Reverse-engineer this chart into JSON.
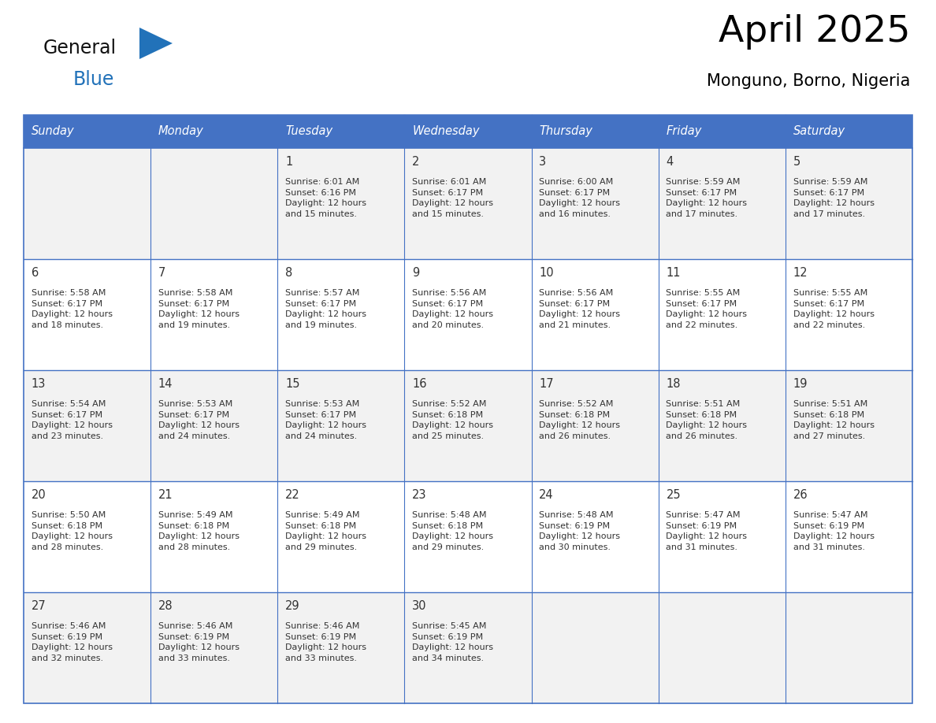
{
  "title": "April 2025",
  "subtitle": "Monguno, Borno, Nigeria",
  "header_bg": "#4472C4",
  "header_text": "#FFFFFF",
  "row_bg_odd": "#F2F2F2",
  "row_bg_even": "#FFFFFF",
  "border_color": "#4472C4",
  "text_color": "#333333",
  "day_headers": [
    "Sunday",
    "Monday",
    "Tuesday",
    "Wednesday",
    "Thursday",
    "Friday",
    "Saturday"
  ],
  "weeks": [
    [
      {
        "day": "",
        "text": ""
      },
      {
        "day": "",
        "text": ""
      },
      {
        "day": "1",
        "text": "Sunrise: 6:01 AM\nSunset: 6:16 PM\nDaylight: 12 hours\nand 15 minutes."
      },
      {
        "day": "2",
        "text": "Sunrise: 6:01 AM\nSunset: 6:17 PM\nDaylight: 12 hours\nand 15 minutes."
      },
      {
        "day": "3",
        "text": "Sunrise: 6:00 AM\nSunset: 6:17 PM\nDaylight: 12 hours\nand 16 minutes."
      },
      {
        "day": "4",
        "text": "Sunrise: 5:59 AM\nSunset: 6:17 PM\nDaylight: 12 hours\nand 17 minutes."
      },
      {
        "day": "5",
        "text": "Sunrise: 5:59 AM\nSunset: 6:17 PM\nDaylight: 12 hours\nand 17 minutes."
      }
    ],
    [
      {
        "day": "6",
        "text": "Sunrise: 5:58 AM\nSunset: 6:17 PM\nDaylight: 12 hours\nand 18 minutes."
      },
      {
        "day": "7",
        "text": "Sunrise: 5:58 AM\nSunset: 6:17 PM\nDaylight: 12 hours\nand 19 minutes."
      },
      {
        "day": "8",
        "text": "Sunrise: 5:57 AM\nSunset: 6:17 PM\nDaylight: 12 hours\nand 19 minutes."
      },
      {
        "day": "9",
        "text": "Sunrise: 5:56 AM\nSunset: 6:17 PM\nDaylight: 12 hours\nand 20 minutes."
      },
      {
        "day": "10",
        "text": "Sunrise: 5:56 AM\nSunset: 6:17 PM\nDaylight: 12 hours\nand 21 minutes."
      },
      {
        "day": "11",
        "text": "Sunrise: 5:55 AM\nSunset: 6:17 PM\nDaylight: 12 hours\nand 22 minutes."
      },
      {
        "day": "12",
        "text": "Sunrise: 5:55 AM\nSunset: 6:17 PM\nDaylight: 12 hours\nand 22 minutes."
      }
    ],
    [
      {
        "day": "13",
        "text": "Sunrise: 5:54 AM\nSunset: 6:17 PM\nDaylight: 12 hours\nand 23 minutes."
      },
      {
        "day": "14",
        "text": "Sunrise: 5:53 AM\nSunset: 6:17 PM\nDaylight: 12 hours\nand 24 minutes."
      },
      {
        "day": "15",
        "text": "Sunrise: 5:53 AM\nSunset: 6:17 PM\nDaylight: 12 hours\nand 24 minutes."
      },
      {
        "day": "16",
        "text": "Sunrise: 5:52 AM\nSunset: 6:18 PM\nDaylight: 12 hours\nand 25 minutes."
      },
      {
        "day": "17",
        "text": "Sunrise: 5:52 AM\nSunset: 6:18 PM\nDaylight: 12 hours\nand 26 minutes."
      },
      {
        "day": "18",
        "text": "Sunrise: 5:51 AM\nSunset: 6:18 PM\nDaylight: 12 hours\nand 26 minutes."
      },
      {
        "day": "19",
        "text": "Sunrise: 5:51 AM\nSunset: 6:18 PM\nDaylight: 12 hours\nand 27 minutes."
      }
    ],
    [
      {
        "day": "20",
        "text": "Sunrise: 5:50 AM\nSunset: 6:18 PM\nDaylight: 12 hours\nand 28 minutes."
      },
      {
        "day": "21",
        "text": "Sunrise: 5:49 AM\nSunset: 6:18 PM\nDaylight: 12 hours\nand 28 minutes."
      },
      {
        "day": "22",
        "text": "Sunrise: 5:49 AM\nSunset: 6:18 PM\nDaylight: 12 hours\nand 29 minutes."
      },
      {
        "day": "23",
        "text": "Sunrise: 5:48 AM\nSunset: 6:18 PM\nDaylight: 12 hours\nand 29 minutes."
      },
      {
        "day": "24",
        "text": "Sunrise: 5:48 AM\nSunset: 6:19 PM\nDaylight: 12 hours\nand 30 minutes."
      },
      {
        "day": "25",
        "text": "Sunrise: 5:47 AM\nSunset: 6:19 PM\nDaylight: 12 hours\nand 31 minutes."
      },
      {
        "day": "26",
        "text": "Sunrise: 5:47 AM\nSunset: 6:19 PM\nDaylight: 12 hours\nand 31 minutes."
      }
    ],
    [
      {
        "day": "27",
        "text": "Sunrise: 5:46 AM\nSunset: 6:19 PM\nDaylight: 12 hours\nand 32 minutes."
      },
      {
        "day": "28",
        "text": "Sunrise: 5:46 AM\nSunset: 6:19 PM\nDaylight: 12 hours\nand 33 minutes."
      },
      {
        "day": "29",
        "text": "Sunrise: 5:46 AM\nSunset: 6:19 PM\nDaylight: 12 hours\nand 33 minutes."
      },
      {
        "day": "30",
        "text": "Sunrise: 5:45 AM\nSunset: 6:19 PM\nDaylight: 12 hours\nand 34 minutes."
      },
      {
        "day": "",
        "text": ""
      },
      {
        "day": "",
        "text": ""
      },
      {
        "day": "",
        "text": ""
      }
    ]
  ],
  "logo_color_general": "#111111",
  "logo_color_blue": "#2272B9",
  "logo_triangle_color": "#2272B9",
  "title_fontsize": 34,
  "subtitle_fontsize": 15,
  "header_fontsize": 10.5,
  "day_num_fontsize": 10.5,
  "cell_text_fontsize": 8.0
}
